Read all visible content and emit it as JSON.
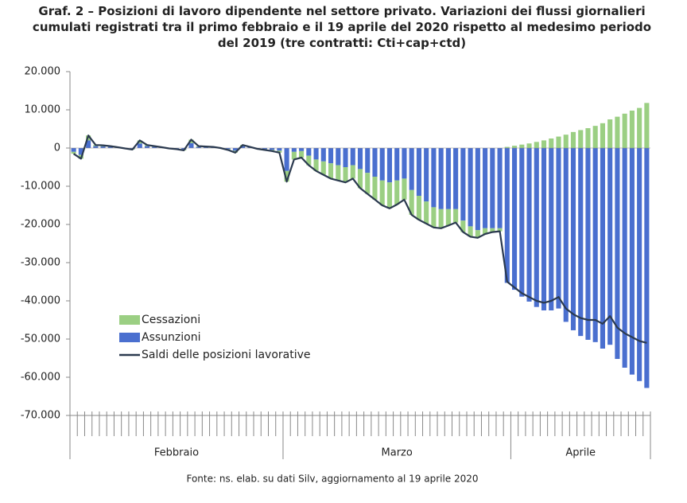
{
  "chart_data": {
    "type": "bar",
    "title": "Graf. 2 – Posizioni di lavoro dipendente nel settore privato. Variazioni dei flussi giornalieri cumulati registrati tra il primo febbraio e il 19 aprile del 2020 rispetto al medesimo periodo del 2019 (tre contratti: Cti+cap+ctd)",
    "source": "Fonte: ns. elab. su dati Silv, aggiornamento al 19 aprile 2020",
    "categories": [
      null,
      null,
      null,
      null,
      null,
      null,
      null,
      null,
      null,
      null,
      null,
      null,
      null,
      null,
      null,
      null,
      null,
      null,
      null,
      null,
      null,
      null,
      null,
      null,
      null,
      null,
      null,
      null,
      null,
      null,
      null,
      null,
      null,
      null,
      null,
      null,
      null,
      null,
      null,
      null,
      null,
      null,
      null,
      null,
      null,
      null,
      null,
      null,
      null,
      null,
      null,
      null,
      null,
      null,
      null,
      null,
      null,
      null,
      null,
      null,
      null,
      null,
      null,
      null,
      null,
      null,
      null,
      null,
      null,
      null,
      null,
      null,
      null,
      null,
      null,
      null,
      null,
      null,
      null
    ],
    "groups": [
      {
        "label": "Febbraio",
        "size": 29
      },
      {
        "label": "Marzo",
        "size": 31
      },
      {
        "label": "Aprile",
        "size": 19
      }
    ],
    "series": [
      {
        "name": "Cessazioni",
        "type": "bar",
        "color": "#9bcf83",
        "values": [
          -500,
          -1000,
          1300,
          300,
          300,
          200,
          100,
          0,
          -200,
          800,
          300,
          200,
          100,
          0,
          -100,
          -200,
          900,
          200,
          200,
          100,
          0,
          -200,
          -500,
          300,
          100,
          -100,
          -200,
          -300,
          -500,
          -2800,
          -2000,
          -1700,
          -2500,
          -3000,
          -3500,
          -4000,
          -4000,
          -4000,
          -3500,
          -5000,
          -5500,
          -6000,
          -6500,
          -6800,
          -6300,
          -5500,
          -6500,
          -6300,
          -5800,
          -5300,
          -5000,
          -4300,
          -3500,
          -3000,
          -2700,
          -2000,
          -1500,
          -1000,
          -800,
          300,
          600,
          900,
          1200,
          1600,
          2000,
          2500,
          3000,
          3500,
          4200,
          4700,
          5200,
          5800,
          6500,
          7500,
          8200,
          9000,
          9800,
          10500,
          11800
        ]
      },
      {
        "name": "Assunzioni",
        "type": "bar",
        "color": "#4a6fcf",
        "values": [
          -1000,
          -1800,
          2000,
          500,
          400,
          300,
          100,
          -100,
          -200,
          1200,
          500,
          300,
          100,
          -100,
          -200,
          -400,
          1300,
          300,
          200,
          200,
          0,
          -300,
          -700,
          500,
          200,
          -100,
          -300,
          -500,
          -700,
          -6000,
          -1000,
          -800,
          -2000,
          -3000,
          -3500,
          -4000,
          -4500,
          -5000,
          -4500,
          -5500,
          -6500,
          -7500,
          -8500,
          -9000,
          -8500,
          -8000,
          -11000,
          -12500,
          -14000,
          -15500,
          -16000,
          -16000,
          -16000,
          -19000,
          -20500,
          -21500,
          -21000,
          -21000,
          -21000,
          -35300,
          -37100,
          -38900,
          -40200,
          -41600,
          -42500,
          -42500,
          -42000,
          -45500,
          -47700,
          -49200,
          -50200,
          -50800,
          -52500,
          -51500,
          -55200,
          -57500,
          -59300,
          -61000,
          -62800
        ]
      },
      {
        "name": "Saldi delle posizioni lavorative",
        "type": "line",
        "color": "#2b3a4f",
        "values": [
          -1500,
          -2800,
          3300,
          800,
          700,
          500,
          200,
          -100,
          -400,
          2000,
          800,
          500,
          200,
          -100,
          -300,
          -600,
          2200,
          500,
          400,
          300,
          0,
          -500,
          -1200,
          800,
          300,
          -200,
          -500,
          -800,
          -1200,
          -8800,
          -3000,
          -2500,
          -4500,
          -6000,
          -7000,
          -8000,
          -8500,
          -9000,
          -8000,
          -10500,
          -12000,
          -13500,
          -15000,
          -15800,
          -14800,
          -13500,
          -17500,
          -18800,
          -19800,
          -20800,
          -21000,
          -20300,
          -19500,
          -22000,
          -23200,
          -23500,
          -22500,
          -22000,
          -21800,
          -35000,
          -36500,
          -38000,
          -39000,
          -40000,
          -40500,
          -40000,
          -39000,
          -42000,
          -43500,
          -44500,
          -45000,
          -45000,
          -46000,
          -44000,
          -47000,
          -48500,
          -49500,
          -50500,
          -51000
        ]
      }
    ],
    "ylim": [
      -70000,
      20000
    ],
    "yticks": [
      {
        "value": 20000,
        "label": "20.000"
      },
      {
        "value": 10000,
        "label": "10.000"
      },
      0,
      {
        "value": -10000,
        "label": "-10.000"
      },
      {
        "value": -20000,
        "label": "-20.000"
      },
      {
        "value": -30000,
        "label": "-30.000"
      },
      {
        "value": -40000,
        "label": "-40.000"
      },
      {
        "value": -50000,
        "label": "-50.000"
      },
      {
        "value": -60000,
        "label": "-60.000"
      },
      {
        "value": -70000,
        "label": "-70.000"
      }
    ],
    "grid": false
  }
}
